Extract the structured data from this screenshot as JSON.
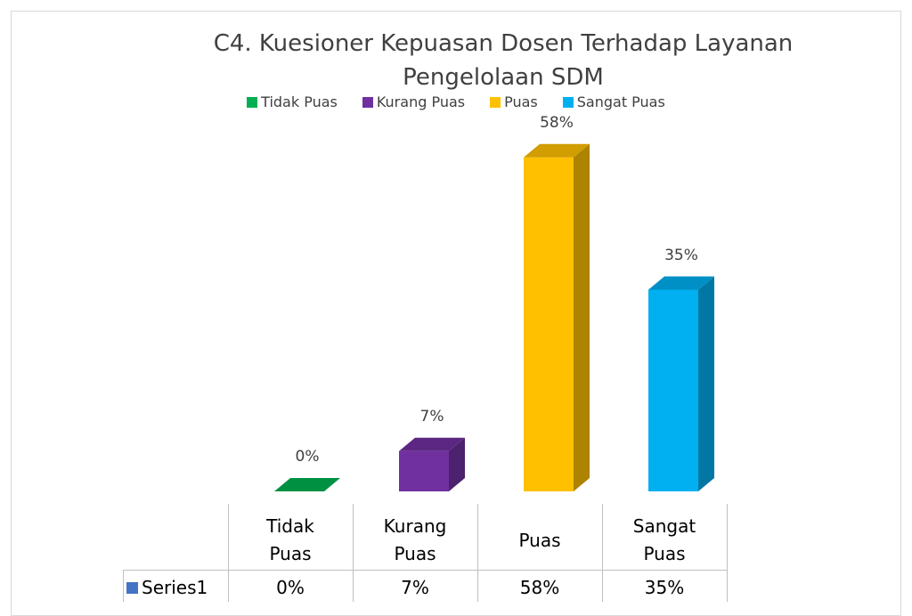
{
  "chart_data": {
    "type": "bar3d",
    "title": "C4. Kuesioner Kepuasan Dosen Terhadap Layanan Pengelolaan SDM",
    "categories": [
      "Tidak Puas",
      "Kurang Puas",
      "Puas",
      "Sangat Puas"
    ],
    "colors": [
      "#00b050",
      "#7030a0",
      "#ffc000",
      "#00b0f0"
    ],
    "series": [
      {
        "name": "Series1",
        "color": "#4472c4",
        "values": [
          0,
          7,
          58,
          35
        ],
        "value_labels": [
          "0%",
          "7%",
          "58%",
          "35%"
        ]
      }
    ]
  }
}
